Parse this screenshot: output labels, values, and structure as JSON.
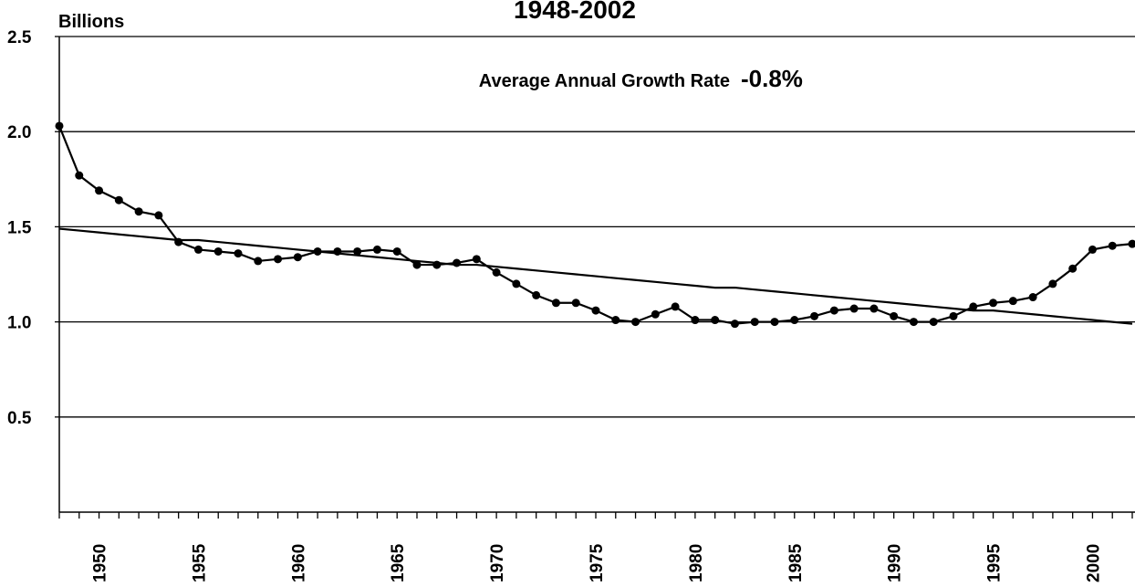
{
  "chart_data": {
    "type": "line",
    "title": "1948-2002",
    "y_label": "Billions",
    "annotation": "Average Annual Growth Rate",
    "annotation_value": "-0.8%",
    "x": [
      1948,
      1949,
      1950,
      1951,
      1952,
      1953,
      1954,
      1955,
      1956,
      1957,
      1958,
      1959,
      1960,
      1961,
      1962,
      1963,
      1964,
      1965,
      1966,
      1967,
      1968,
      1969,
      1970,
      1971,
      1972,
      1973,
      1974,
      1975,
      1976,
      1977,
      1978,
      1979,
      1980,
      1981,
      1982,
      1983,
      1984,
      1985,
      1986,
      1987,
      1988,
      1989,
      1990,
      1991,
      1992,
      1993,
      1994,
      1995,
      1996,
      1997,
      1998,
      1999,
      2000,
      2001,
      2002
    ],
    "series": [
      {
        "color": "#000000",
        "markers": true,
        "values": [
          2.03,
          1.77,
          1.69,
          1.64,
          1.58,
          1.56,
          1.42,
          1.38,
          1.37,
          1.36,
          1.32,
          1.33,
          1.34,
          1.37,
          1.37,
          1.37,
          1.38,
          1.37,
          1.3,
          1.3,
          1.31,
          1.33,
          1.26,
          1.2,
          1.14,
          1.1,
          1.1,
          1.06,
          1.01,
          1.0,
          1.04,
          1.08,
          1.01,
          1.01,
          0.99,
          1.0,
          1.0,
          1.01,
          1.03,
          1.06,
          1.07,
          1.07,
          1.03,
          1.0,
          1.0,
          1.03,
          1.08,
          1.1,
          1.11,
          1.13,
          1.2,
          1.28,
          1.38,
          1.4,
          1.41
        ]
      },
      {
        "color": "#000000",
        "markers": false,
        "values": [
          1.49,
          1.48,
          1.47,
          1.46,
          1.45,
          1.44,
          1.43,
          1.43,
          1.42,
          1.41,
          1.4,
          1.39,
          1.38,
          1.37,
          1.36,
          1.35,
          1.34,
          1.33,
          1.32,
          1.31,
          1.3,
          1.3,
          1.29,
          1.28,
          1.27,
          1.26,
          1.25,
          1.24,
          1.23,
          1.22,
          1.21,
          1.2,
          1.19,
          1.18,
          1.18,
          1.17,
          1.16,
          1.15,
          1.14,
          1.13,
          1.12,
          1.11,
          1.1,
          1.09,
          1.08,
          1.07,
          1.06,
          1.06,
          1.05,
          1.04,
          1.03,
          1.02,
          1.01,
          1.0,
          0.99
        ]
      }
    ],
    "xlim": [
      1948,
      2002
    ],
    "xticks": [
      1950,
      1955,
      1960,
      1965,
      1970,
      1975,
      1980,
      1985,
      1990,
      1995,
      2000
    ],
    "ylim": [
      0,
      2.5
    ],
    "yticks": [
      {
        "value": 0.5,
        "label": "0.5"
      },
      {
        "value": 1,
        "label": "1.0"
      },
      {
        "value": 1.5,
        "label": "1.5"
      },
      {
        "value": 2,
        "label": "2.0"
      },
      {
        "value": 2.5,
        "label": "2.5"
      }
    ],
    "grid": true
  }
}
